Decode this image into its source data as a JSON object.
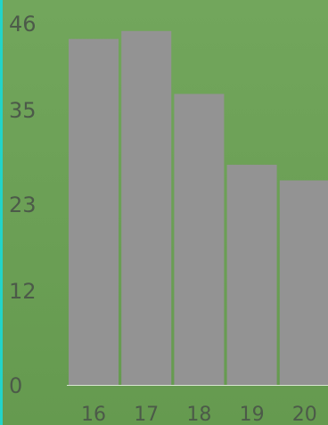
{
  "chart_data": {
    "type": "bar",
    "categories": [
      "16",
      "17",
      "18",
      "19",
      "20"
    ],
    "values": [
      44,
      45,
      37,
      28,
      26
    ],
    "y_ticks": [
      "0",
      "12",
      "23",
      "35",
      "46"
    ],
    "ylim": [
      0,
      46
    ],
    "grid": false,
    "title": "",
    "xlabel": "",
    "ylabel": "",
    "colors": {
      "background": "#6b9f55",
      "bar": "#939393",
      "tick_text": "#4c5a49",
      "accent": "#22d4c9",
      "baseline": "#d9e6d1"
    }
  }
}
